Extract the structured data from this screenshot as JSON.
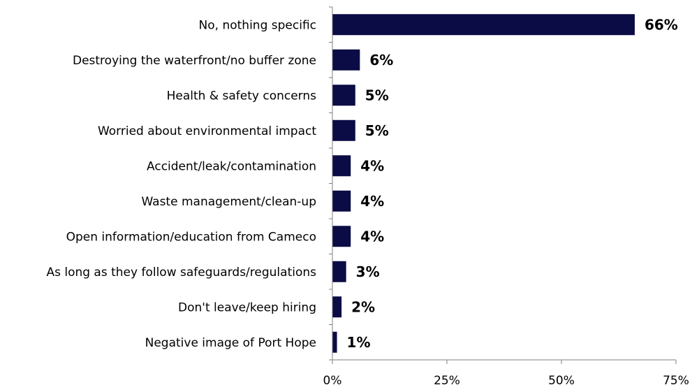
{
  "chart_data": {
    "type": "bar",
    "orientation": "horizontal",
    "categories": [
      "No, nothing specific",
      "Destroying the waterfront/no buffer zone",
      "Health & safety concerns",
      "Worried about environmental impact",
      "Accident/leak/contamination",
      "Waste management/clean-up",
      "Open information/education from Cameco",
      "As long as they follow safeguards/regulations",
      "Don't leave/keep hiring",
      "Negative image of Port Hope"
    ],
    "values": [
      66,
      6,
      5,
      5,
      4,
      4,
      4,
      3,
      2,
      1
    ],
    "value_labels": [
      "66%",
      "6%",
      "5%",
      "5%",
      "4%",
      "4%",
      "4%",
      "3%",
      "2%",
      "1%"
    ],
    "xlim": [
      0,
      75
    ],
    "xticks": [
      0,
      25,
      50,
      75
    ],
    "xtick_labels": [
      "0%",
      "25%",
      "50%",
      "75%"
    ],
    "bar_color": "#0b0b45",
    "grid": false,
    "legend": "none"
  }
}
